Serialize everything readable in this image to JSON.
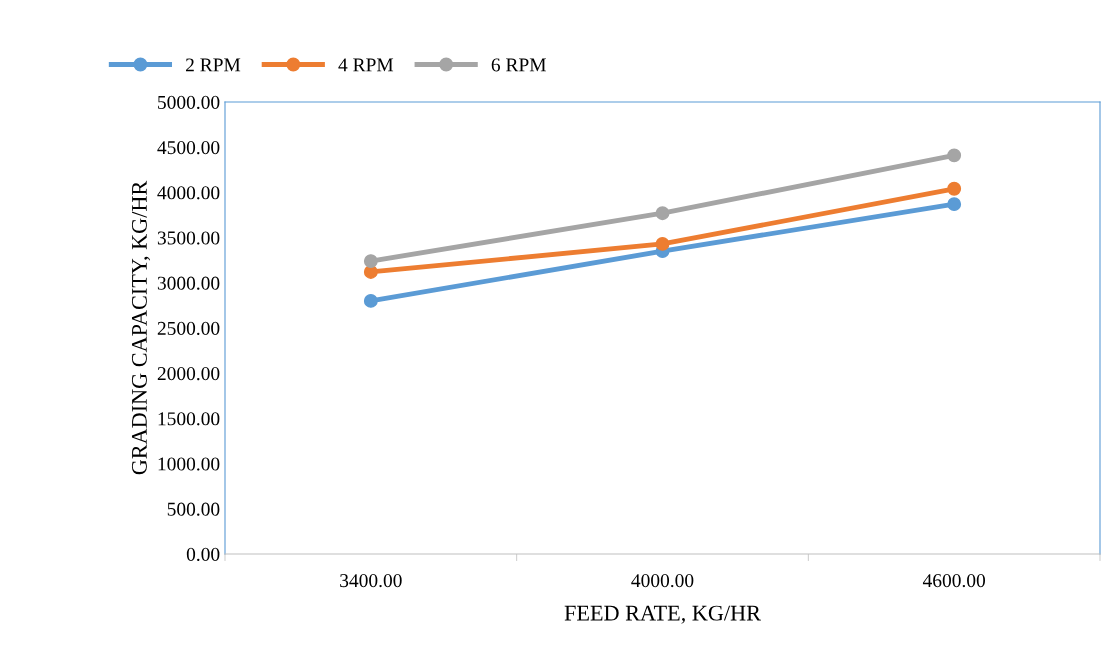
{
  "chart_data": {
    "type": "line",
    "xlabel": "FEED RATE, KG/HR",
    "ylabel": "GRADING CAPACITY, KG/HR",
    "categories": [
      "3400.00",
      "4000.00",
      "4600.00"
    ],
    "series": [
      {
        "name": "2 RPM",
        "color": "#5b9bd5",
        "values": [
          2800,
          3350,
          3870
        ]
      },
      {
        "name": "4 RPM",
        "color": "#ed7d31",
        "values": [
          3120,
          3430,
          4040
        ]
      },
      {
        "name": "6 RPM",
        "color": "#a5a5a5",
        "values": [
          3240,
          3770,
          4410
        ]
      }
    ],
    "ylim": [
      0,
      5000
    ],
    "yticks": [
      {
        "value": 0,
        "label": "0.00"
      },
      {
        "value": 500,
        "label": "500.00"
      },
      {
        "value": 1000,
        "label": "1000.00"
      },
      {
        "value": 1500,
        "label": "1500.00"
      },
      {
        "value": 2000,
        "label": "2000.00"
      },
      {
        "value": 2500,
        "label": "2500.00"
      },
      {
        "value": 3000,
        "label": "3000.00"
      },
      {
        "value": 3500,
        "label": "3500.00"
      },
      {
        "value": 4000,
        "label": "4000.00"
      },
      {
        "value": 4500,
        "label": "4500.00"
      },
      {
        "value": 5000,
        "label": "5000.00"
      }
    ],
    "legend": "top left",
    "marker": "circle",
    "line_style": "solid",
    "grid": false
  }
}
